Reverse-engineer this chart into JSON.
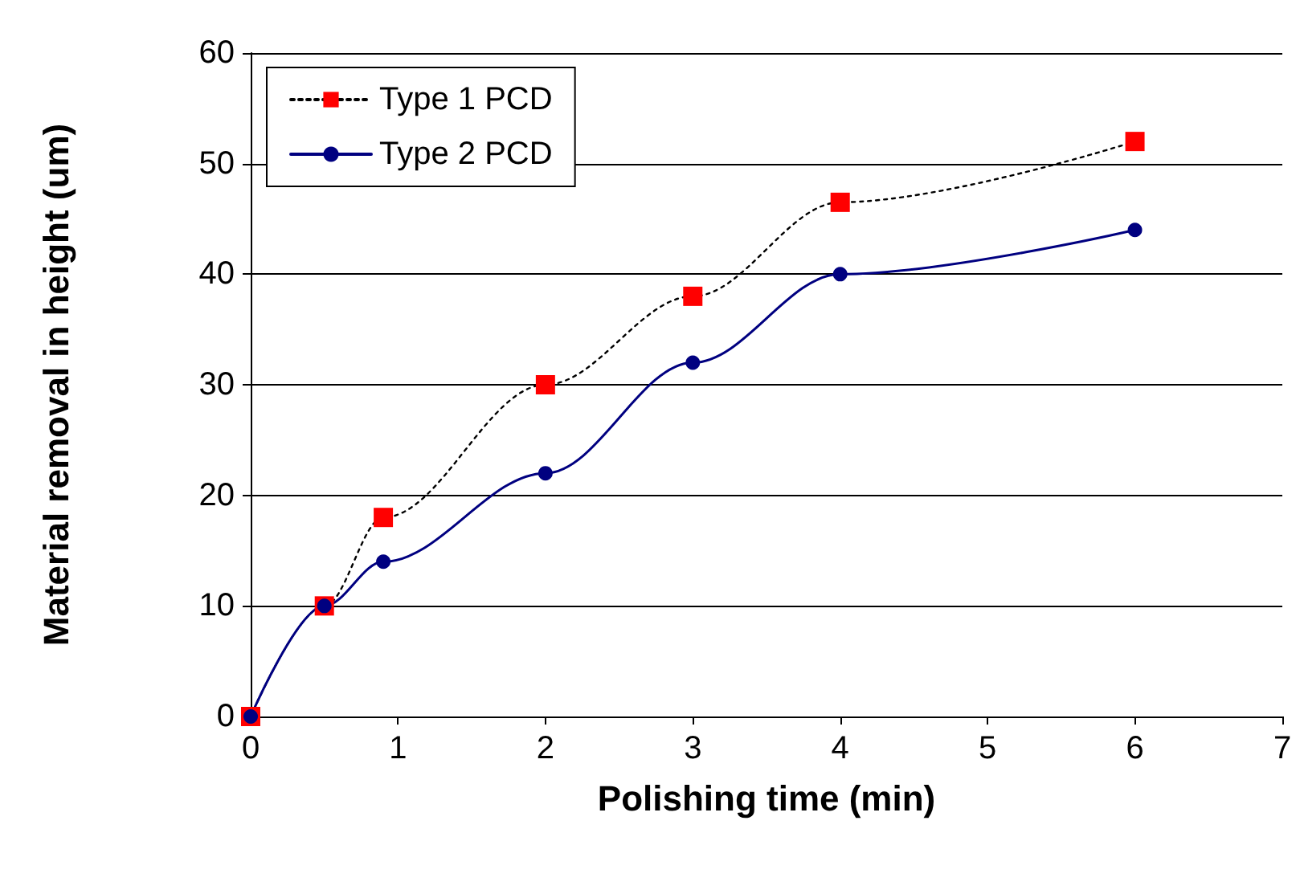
{
  "chart_data": {
    "type": "line",
    "xlabel": "Polishing time (min)",
    "ylabel": "Material removal in height (um)",
    "xlim": [
      0,
      7
    ],
    "xticks": [
      0,
      1,
      2,
      3,
      4,
      5,
      6,
      7
    ],
    "ylim": [
      0,
      60
    ],
    "yticks": [
      0,
      10,
      20,
      30,
      40,
      50,
      60
    ],
    "grid": "y",
    "legend": "top left",
    "series": [
      {
        "name": "Type 1 PCD",
        "color": "#ff0000",
        "marker": "square",
        "line_style": "dotted",
        "x": [
          0,
          0.5,
          0.9,
          2,
          3,
          4,
          6
        ],
        "values": [
          0,
          10,
          18,
          30,
          38,
          46.5,
          52
        ]
      },
      {
        "name": "Type 2 PCD",
        "color": "#000080",
        "marker": "circle",
        "line_style": "solid",
        "x": [
          0,
          0.5,
          0.9,
          2,
          3,
          4,
          6
        ],
        "values": [
          0,
          10,
          14,
          22,
          32,
          40,
          44
        ]
      }
    ]
  }
}
